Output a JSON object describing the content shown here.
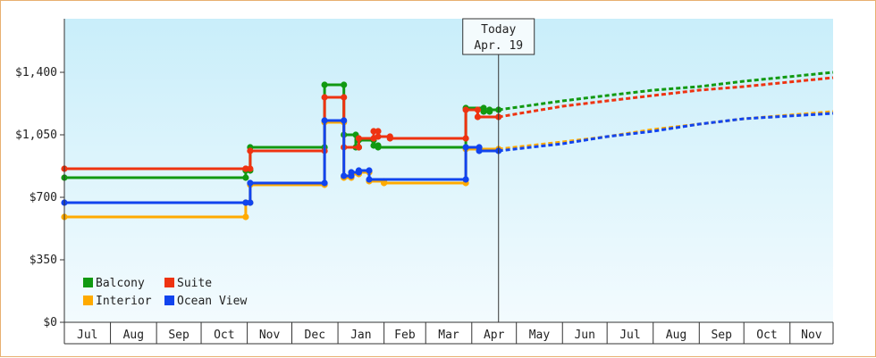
{
  "chart_data": {
    "type": "line",
    "title": "",
    "xlabel": "",
    "ylabel": "",
    "ylim": [
      0,
      1700
    ],
    "y_ticks": [
      0,
      350,
      700,
      1050,
      1400
    ],
    "y_tick_labels": [
      "$0",
      "$350",
      "$700",
      "$1,050",
      "$1,400"
    ],
    "x_ticks": [
      "Jul",
      "Aug",
      "Sep",
      "Oct",
      "Nov",
      "Dec",
      "Jan",
      "Feb",
      "Mar",
      "Apr",
      "May",
      "Jun",
      "Jul",
      "Aug",
      "Sep",
      "Oct",
      "Nov"
    ],
    "xlim": [
      "2017-07-01",
      "2018-11-30"
    ],
    "grid": false,
    "legend_position": "bottom-left",
    "today": {
      "date": "2018-04-19",
      "label_line1": "Today",
      "label_line2": "Apr. 19"
    },
    "series": [
      {
        "name": "Balcony",
        "color": "#119911",
        "historical": [
          [
            "2017-07-01",
            810
          ],
          [
            "2017-10-31",
            810
          ],
          [
            "2017-10-31",
            850
          ],
          [
            "2017-11-03",
            850
          ],
          [
            "2017-11-03",
            980
          ],
          [
            "2017-12-23",
            980
          ],
          [
            "2017-12-23",
            1330
          ],
          [
            "2018-01-05",
            1330
          ],
          [
            "2018-01-05",
            1050
          ],
          [
            "2018-01-13",
            1050
          ],
          [
            "2018-01-13",
            980
          ],
          [
            "2018-01-15",
            980
          ],
          [
            "2018-01-15",
            1020
          ],
          [
            "2018-01-25",
            1020
          ],
          [
            "2018-01-25",
            990
          ],
          [
            "2018-01-28",
            990
          ],
          [
            "2018-01-28",
            980
          ],
          [
            "2018-03-28",
            980
          ],
          [
            "2018-03-28",
            1200
          ],
          [
            "2018-04-09",
            1200
          ],
          [
            "2018-04-09",
            1180
          ],
          [
            "2018-04-13",
            1180
          ],
          [
            "2018-04-13",
            1190
          ],
          [
            "2018-04-19",
            1190
          ]
        ],
        "forecast": [
          [
            "2018-04-19",
            1190
          ],
          [
            "2018-06-01",
            1240
          ],
          [
            "2018-07-01",
            1270
          ],
          [
            "2018-08-01",
            1300
          ],
          [
            "2018-09-01",
            1320
          ],
          [
            "2018-10-01",
            1350
          ],
          [
            "2018-11-30",
            1400
          ]
        ]
      },
      {
        "name": "Suite",
        "color": "#ee3311",
        "historical": [
          [
            "2017-07-01",
            860
          ],
          [
            "2017-10-31",
            860
          ],
          [
            "2017-10-31",
            860
          ],
          [
            "2017-11-03",
            860
          ],
          [
            "2017-11-03",
            960
          ],
          [
            "2017-12-23",
            960
          ],
          [
            "2017-12-23",
            1260
          ],
          [
            "2018-01-05",
            1260
          ],
          [
            "2018-01-05",
            980
          ],
          [
            "2018-01-15",
            980
          ],
          [
            "2018-01-15",
            1030
          ],
          [
            "2018-01-25",
            1030
          ],
          [
            "2018-01-25",
            1070
          ],
          [
            "2018-01-28",
            1070
          ],
          [
            "2018-01-28",
            1040
          ],
          [
            "2018-02-05",
            1040
          ],
          [
            "2018-02-05",
            1030
          ],
          [
            "2018-03-28",
            1030
          ],
          [
            "2018-03-28",
            1190
          ],
          [
            "2018-04-05",
            1190
          ],
          [
            "2018-04-05",
            1150
          ],
          [
            "2018-04-19",
            1150
          ]
        ],
        "forecast": [
          [
            "2018-04-19",
            1150
          ],
          [
            "2018-06-01",
            1210
          ],
          [
            "2018-07-01",
            1240
          ],
          [
            "2018-08-01",
            1270
          ],
          [
            "2018-09-01",
            1300
          ],
          [
            "2018-10-01",
            1320
          ],
          [
            "2018-11-30",
            1370
          ]
        ]
      },
      {
        "name": "Interior",
        "color": "#ffaa00",
        "historical": [
          [
            "2017-07-01",
            590
          ],
          [
            "2017-10-31",
            590
          ],
          [
            "2017-10-31",
            670
          ],
          [
            "2017-11-03",
            670
          ],
          [
            "2017-11-03",
            770
          ],
          [
            "2017-12-23",
            770
          ],
          [
            "2017-12-23",
            1120
          ],
          [
            "2018-01-05",
            1120
          ],
          [
            "2018-01-05",
            810
          ],
          [
            "2018-01-10",
            810
          ],
          [
            "2018-01-10",
            830
          ],
          [
            "2018-01-15",
            830
          ],
          [
            "2018-01-15",
            840
          ],
          [
            "2018-01-22",
            840
          ],
          [
            "2018-01-22",
            790
          ],
          [
            "2018-02-01",
            790
          ],
          [
            "2018-02-01",
            780
          ],
          [
            "2018-03-28",
            780
          ],
          [
            "2018-03-28",
            970
          ],
          [
            "2018-04-19",
            970
          ]
        ],
        "forecast": [
          [
            "2018-04-19",
            970
          ],
          [
            "2018-06-01",
            1010
          ],
          [
            "2018-07-01",
            1040
          ],
          [
            "2018-08-01",
            1080
          ],
          [
            "2018-09-01",
            1110
          ],
          [
            "2018-10-01",
            1140
          ],
          [
            "2018-11-30",
            1180
          ]
        ]
      },
      {
        "name": "Ocean View",
        "color": "#1144ee",
        "historical": [
          [
            "2017-07-01",
            670
          ],
          [
            "2017-10-31",
            670
          ],
          [
            "2017-11-03",
            670
          ],
          [
            "2017-11-03",
            780
          ],
          [
            "2017-12-23",
            780
          ],
          [
            "2017-12-23",
            1130
          ],
          [
            "2018-01-05",
            1130
          ],
          [
            "2018-01-05",
            820
          ],
          [
            "2018-01-10",
            820
          ],
          [
            "2018-01-10",
            840
          ],
          [
            "2018-01-15",
            840
          ],
          [
            "2018-01-15",
            850
          ],
          [
            "2018-01-22",
            850
          ],
          [
            "2018-01-22",
            800
          ],
          [
            "2018-03-28",
            800
          ],
          [
            "2018-03-28",
            980
          ],
          [
            "2018-04-06",
            980
          ],
          [
            "2018-04-06",
            960
          ],
          [
            "2018-04-19",
            960
          ]
        ],
        "forecast": [
          [
            "2018-04-19",
            960
          ],
          [
            "2018-06-01",
            1000
          ],
          [
            "2018-07-01",
            1040
          ],
          [
            "2018-08-01",
            1070
          ],
          [
            "2018-09-01",
            1110
          ],
          [
            "2018-10-01",
            1140
          ],
          [
            "2018-11-30",
            1170
          ]
        ]
      }
    ]
  }
}
